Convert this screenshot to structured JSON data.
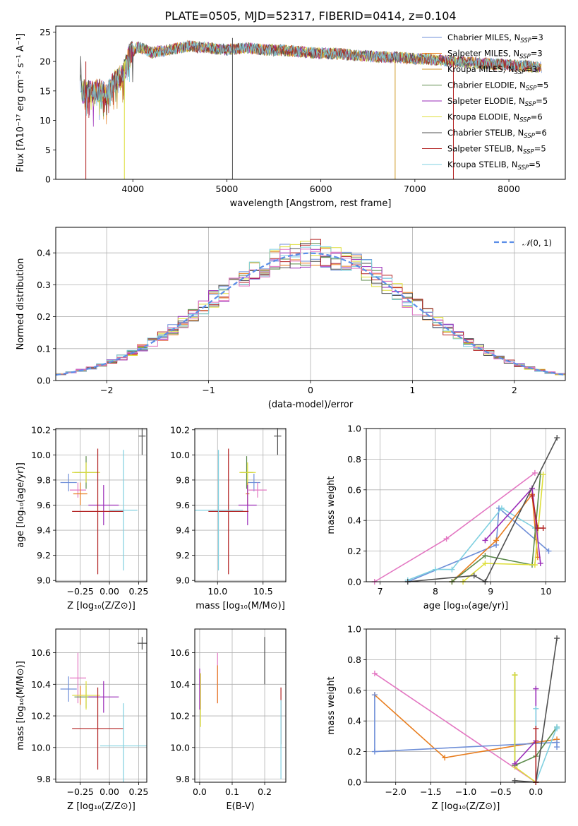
{
  "figure": {
    "title": "PLATE=0505, MJD=52317, FIBERID=0414, z=0.104"
  },
  "colors": {
    "Chabrier MILES": "#6f8fd8",
    "Salpeter MILES": "#e87d1e",
    "Kroupa MILES": "#d09a2a",
    "Chabrier ELODIE": "#5b8a4a",
    "Salpeter ELODIE": "#9a2bb8",
    "Kroupa ELODIE": "#dede3a",
    "Chabrier STELIB": "#505050",
    "Salpeter STELIB": "#b22222",
    "Kroupa STELIB": "#7fd0e0",
    "pink": "#e377c2",
    "gaussian": "#5b8ee8"
  },
  "chart_data": [
    {
      "id": "spectrum",
      "type": "line",
      "xlabel": "wavelength [Angstrom, rest frame]",
      "ylabel": "Flux [fλ10⁻¹⁷ erg cm⁻² s⁻¹ A⁻¹]",
      "xlim": [
        3180,
        8600
      ],
      "ylim": [
        0,
        26
      ],
      "xticks": [
        4000,
        5000,
        6000,
        7000,
        8000
      ],
      "yticks": [
        0,
        5,
        10,
        15,
        20,
        25
      ],
      "spikes": [
        3500,
        3910,
        5060,
        6790,
        7410
      ],
      "series": [
        {
          "name": "Chabrier MILES, N_SSP=3",
          "label": "Chabrier MILES, N",
          "sub": "SSP",
          "n": "=3",
          "color": "#6f8fd8"
        },
        {
          "name": "Salpeter MILES, N_SSP=3",
          "label": "Salpeter MILES, N",
          "sub": "SSP",
          "n": "=3",
          "color": "#e87d1e"
        },
        {
          "name": "Kroupa MILES, N_SSP=3",
          "label": "Kroupa MILES, N",
          "sub": "SSP",
          "n": "=3",
          "color": "#d09a2a"
        },
        {
          "name": "Chabrier ELODIE, N_SSP=5",
          "label": "Chabrier ELODIE, N",
          "sub": "SSP",
          "n": "=5",
          "color": "#5b8a4a"
        },
        {
          "name": "Salpeter ELODIE, N_SSP=5",
          "label": "Salpeter ELODIE, N",
          "sub": "SSP",
          "n": "=5",
          "color": "#9a2bb8"
        },
        {
          "name": "Kroupa ELODIE, N_SSP=6",
          "label": "Kroupa ELODIE, N",
          "sub": "SSP",
          "n": "=6",
          "color": "#dede3a"
        },
        {
          "name": "Chabrier STELIB, N_SSP=6",
          "label": "Chabrier STELIB, N",
          "sub": "SSP",
          "n": "=6",
          "color": "#505050"
        },
        {
          "name": "Salpeter STELIB, N_SSP=5",
          "label": "Salpeter STELIB, N",
          "sub": "SSP",
          "n": "=5",
          "color": "#b22222"
        },
        {
          "name": "Kroupa STELIB, N_SSP=5",
          "label": "Kroupa STELIB, N",
          "sub": "SSP",
          "n": "=5",
          "color": "#7fd0e0"
        }
      ],
      "continuum": [
        [
          3450,
          15.3
        ],
        [
          3550,
          14.8
        ],
        [
          3650,
          15.2
        ],
        [
          3720,
          14.2
        ],
        [
          3800,
          16.5
        ],
        [
          3900,
          18.0
        ],
        [
          3960,
          21.0
        ],
        [
          4050,
          22.5
        ],
        [
          4200,
          21.5
        ],
        [
          4400,
          22.0
        ],
        [
          4600,
          22.6
        ],
        [
          4850,
          22.2
        ],
        [
          5000,
          22.0
        ],
        [
          5200,
          22.3
        ],
        [
          5400,
          22.0
        ],
        [
          5600,
          21.9
        ],
        [
          5800,
          21.6
        ],
        [
          6000,
          21.4
        ],
        [
          6200,
          21.3
        ],
        [
          6400,
          21.0
        ],
        [
          6600,
          20.8
        ],
        [
          6800,
          20.7
        ],
        [
          7000,
          20.5
        ],
        [
          7200,
          20.3
        ],
        [
          7400,
          20.0
        ],
        [
          7600,
          19.8
        ],
        [
          7800,
          19.6
        ],
        [
          8000,
          19.4
        ],
        [
          8200,
          19.2
        ],
        [
          8350,
          19.0
        ]
      ]
    },
    {
      "id": "histogram",
      "type": "histogram",
      "xlabel": "(data-model)/error",
      "ylabel": "Normed distribution",
      "xlim": [
        -2.5,
        2.5
      ],
      "ylim": [
        0,
        0.48
      ],
      "xticks": [
        -2,
        -1,
        0,
        1,
        2
      ],
      "yticks": [
        0.0,
        0.1,
        0.2,
        0.3,
        0.4
      ],
      "bin_width": 0.1,
      "legend": "N(0,1)"
    },
    {
      "id": "age_vs_Z",
      "type": "scatter",
      "xlabel": "Z [log₁₀(Z/Z⊙)]",
      "ylabel": "age  [log₁₀(age/yr)]",
      "xlim": [
        -0.46,
        0.32
      ],
      "ylim": [
        8.99,
        10.21
      ],
      "xticks": [
        -0.25,
        0.0,
        0.25
      ],
      "xtick_labels": [
        "−0.25",
        "0.00",
        "0.25"
      ],
      "yticks": [
        9.0,
        9.2,
        9.4,
        9.6,
        9.8,
        10.0,
        10.2
      ],
      "points": [
        {
          "x": -0.35,
          "y": 9.78,
          "xe": 0.07,
          "ye": 0.07,
          "color": "#6f8fd8"
        },
        {
          "x": -0.27,
          "y": 9.72,
          "xe": 0.07,
          "ye": 0.06,
          "color": "#e377c2"
        },
        {
          "x": -0.25,
          "y": 9.69,
          "xe": 0.06,
          "ye": 0.09,
          "color": "#e87d1e"
        },
        {
          "x": -0.2,
          "y": 9.86,
          "xe": 0.1,
          "ye": 0.13,
          "color": "#5b8a4a"
        },
        {
          "x": -0.2,
          "y": 9.86,
          "xe": 0.12,
          "ye": 0.08,
          "color": "#dede3a"
        },
        {
          "x": -0.05,
          "y": 9.6,
          "xe": 0.13,
          "ye": 0.16,
          "color": "#9a2bb8"
        },
        {
          "x": -0.1,
          "y": 9.55,
          "xe": 0.22,
          "ye": 0.5,
          "color": "#b22222"
        },
        {
          "x": 0.12,
          "y": 9.56,
          "xe": 0.12,
          "ye": 0.48,
          "color": "#7fd0e0"
        },
        {
          "x": 0.28,
          "y": 10.15,
          "xe": 0.03,
          "ye": 0.15,
          "color": "#505050"
        }
      ]
    },
    {
      "id": "age_vs_mass",
      "type": "scatter",
      "xlabel": "mass [log₁₀(M/M⊙)]",
      "ylabel": "",
      "xlim": [
        9.75,
        10.75
      ],
      "ylim": [
        8.99,
        10.21
      ],
      "xticks": [
        10.0,
        10.5
      ],
      "xtick_labels": [
        "10.0",
        "10.5"
      ],
      "yticks": [
        9.0,
        9.2,
        9.4,
        9.6,
        9.8,
        10.0,
        10.2
      ],
      "points": [
        {
          "x": 10.4,
          "y": 9.78,
          "xe": 0.07,
          "ye": 0.07,
          "color": "#6f8fd8"
        },
        {
          "x": 10.44,
          "y": 9.72,
          "xe": 0.1,
          "ye": 0.06,
          "color": "#e377c2"
        },
        {
          "x": 10.33,
          "y": 9.69,
          "xe": 0.02,
          "ye": 0.09,
          "color": "#e87d1e"
        },
        {
          "x": 10.32,
          "y": 9.86,
          "xe": 0.07,
          "ye": 0.13,
          "color": "#5b8a4a"
        },
        {
          "x": 10.33,
          "y": 9.86,
          "xe": 0.09,
          "ye": 0.08,
          "color": "#dede3a"
        },
        {
          "x": 10.33,
          "y": 9.6,
          "xe": 0.1,
          "ye": 0.16,
          "color": "#9a2bb8"
        },
        {
          "x": 10.12,
          "y": 9.55,
          "xe": 0.22,
          "ye": 0.5,
          "color": "#b22222"
        },
        {
          "x": 10.01,
          "y": 9.56,
          "xe": 0.27,
          "ye": 0.48,
          "color": "#7fd0e0"
        },
        {
          "x": 10.66,
          "y": 10.15,
          "xe": 0.04,
          "ye": 0.15,
          "color": "#505050"
        }
      ]
    },
    {
      "id": "weight_vs_age",
      "type": "line",
      "xlabel": "age  [log₁₀(age/yr)]",
      "ylabel": "mass weight",
      "xlim": [
        6.75,
        10.35
      ],
      "ylim": [
        0.0,
        1.0
      ],
      "xticks": [
        7,
        8,
        9,
        10
      ],
      "xtick_labels": [
        "7",
        "8",
        "9",
        "10"
      ],
      "yticks": [
        0.0,
        0.2,
        0.4,
        0.6,
        0.8,
        1.0
      ],
      "series": [
        {
          "color": "#e377c2",
          "x": [
            6.9,
            8.2,
            9.8
          ],
          "y": [
            0.0,
            0.28,
            0.71
          ]
        },
        {
          "color": "#6f8fd8",
          "x": [
            7.5,
            9.1,
            9.15,
            10.05
          ],
          "y": [
            0.0,
            0.24,
            0.48,
            0.2
          ]
        },
        {
          "color": "#7fd0e0",
          "x": [
            7.5,
            8.0,
            8.3,
            9.2,
            9.8
          ],
          "y": [
            0.01,
            0.08,
            0.08,
            0.48,
            0.35
          ]
        },
        {
          "color": "#e87d1e",
          "x": [
            8.3,
            9.1,
            9.75,
            9.85
          ],
          "y": [
            0.0,
            0.27,
            0.57,
            0.16
          ]
        },
        {
          "color": "#5b8a4a",
          "x": [
            8.3,
            8.9,
            9.75,
            9.9
          ],
          "y": [
            0.0,
            0.17,
            0.11,
            0.7
          ]
        },
        {
          "color": "#dede3a",
          "x": [
            8.5,
            8.9,
            9.8,
            9.95
          ],
          "y": [
            0.0,
            0.12,
            0.11,
            0.7
          ]
        },
        {
          "color": "#9a2bb8",
          "x": [
            8.9,
            9.75,
            9.9
          ],
          "y": [
            0.27,
            0.61,
            0.12
          ]
        },
        {
          "color": "#505050",
          "x": [
            7.5,
            8.7,
            8.9,
            10.2
          ],
          "y": [
            0.0,
            0.04,
            0.0,
            0.94
          ]
        },
        {
          "color": "#b22222",
          "x": [
            9.75,
            9.85,
            9.95
          ],
          "y": [
            0.56,
            0.35,
            0.35
          ]
        }
      ]
    },
    {
      "id": "mass_vs_Z",
      "type": "scatter",
      "xlabel": "Z [log₁₀(Z/Z⊙)]",
      "ylabel": "mass [log₁₀(M/M⊙)]",
      "xlim": [
        -0.46,
        0.32
      ],
      "ylim": [
        9.78,
        10.75
      ],
      "xticks": [
        -0.25,
        0.0,
        0.25
      ],
      "xtick_labels": [
        "−0.25",
        "0.00",
        "0.25"
      ],
      "yticks": [
        9.8,
        10.0,
        10.2,
        10.4,
        10.6
      ],
      "points": [
        {
          "x": -0.35,
          "y": 10.37,
          "xe": 0.07,
          "ye": 0.08,
          "color": "#6f8fd8"
        },
        {
          "x": -0.27,
          "y": 10.44,
          "xe": 0.07,
          "ye": 0.16,
          "color": "#e377c2"
        },
        {
          "x": -0.25,
          "y": 10.33,
          "xe": 0.06,
          "ye": 0.06,
          "color": "#e87d1e"
        },
        {
          "x": -0.2,
          "y": 10.32,
          "xe": 0.1,
          "ye": 0.07,
          "color": "#5b8a4a"
        },
        {
          "x": -0.2,
          "y": 10.33,
          "xe": 0.12,
          "ye": 0.09,
          "color": "#dede3a"
        },
        {
          "x": -0.05,
          "y": 10.32,
          "xe": 0.13,
          "ye": 0.1,
          "color": "#9a2bb8"
        },
        {
          "x": -0.1,
          "y": 10.12,
          "xe": 0.22,
          "ye": 0.26,
          "color": "#b22222"
        },
        {
          "x": 0.12,
          "y": 10.01,
          "xe": 0.2,
          "ye": 0.27,
          "color": "#7fd0e0"
        },
        {
          "x": 0.28,
          "y": 10.66,
          "xe": 0.04,
          "ye": 0.04,
          "color": "#505050"
        }
      ]
    },
    {
      "id": "mass_vs_EBV",
      "type": "scatter",
      "xlabel": "E(B-V)",
      "ylabel": "",
      "xlim": [
        -0.015,
        0.265
      ],
      "ylim": [
        9.78,
        10.75
      ],
      "xticks": [
        0.0,
        0.1,
        0.2
      ],
      "xtick_labels": [
        "0.0",
        "0.1",
        "0.2"
      ],
      "yticks": [
        9.8,
        10.0,
        10.2,
        10.4,
        10.6
      ],
      "points": [
        {
          "x": 0.0,
          "y": 10.37,
          "xe": 0,
          "ye": 0.13,
          "color": "#9a2bb8"
        },
        {
          "x": 0.003,
          "y": 10.3,
          "xe": 0,
          "ye": 0.17,
          "color": "#dede3a"
        },
        {
          "x": 0.055,
          "y": 10.44,
          "xe": 0,
          "ye": 0.16,
          "color": "#e377c2"
        },
        {
          "x": 0.055,
          "y": 10.4,
          "xe": 0,
          "ye": 0.12,
          "color": "#e87d1e"
        },
        {
          "x": 0.2,
          "y": 10.55,
          "xe": 0,
          "ye": 0.15,
          "color": "#505050"
        },
        {
          "x": 0.25,
          "y": 10.2,
          "xe": 0,
          "ye": 0.18,
          "color": "#b22222"
        },
        {
          "x": 0.25,
          "y": 10.05,
          "xe": 0,
          "ye": 0.25,
          "color": "#7fd0e0"
        }
      ]
    },
    {
      "id": "weight_vs_Z",
      "type": "line",
      "xlabel": "Z [log₁₀(Z/Z⊙)]",
      "ylabel": "mass weight",
      "xlim": [
        -2.42,
        0.42
      ],
      "ylim": [
        0.0,
        1.0
      ],
      "xticks": [
        -2.0,
        -1.5,
        -1.0,
        -0.5,
        0.0
      ],
      "xtick_labels": [
        "−2.0",
        "−1.5",
        "−1.0",
        "−0.5",
        "0.0"
      ],
      "yticks": [
        0.0,
        0.2,
        0.4,
        0.6,
        0.8,
        1.0
      ],
      "series": [
        {
          "color": "#e377c2",
          "x": [
            -2.3,
            0.0
          ],
          "y": [
            0.71,
            0.0
          ]
        },
        {
          "color": "#e87d1e",
          "x": [
            -2.3,
            -1.3,
            0.0,
            0.3
          ],
          "y": [
            0.57,
            0.16,
            0.26,
            0.28
          ]
        },
        {
          "color": "#6f8fd8",
          "x": [
            -2.3,
            -2.3,
            0.3,
            0.3
          ],
          "y": [
            0.57,
            0.2,
            0.26,
            0.23
          ]
        },
        {
          "color": "#5b8a4a",
          "x": [
            -0.3,
            -0.3,
            0.0,
            0.3
          ],
          "y": [
            0.7,
            0.11,
            0.17,
            0.36
          ]
        },
        {
          "color": "#dede3a",
          "x": [
            -0.3,
            -0.3,
            0.0
          ],
          "y": [
            0.7,
            0.1,
            0.0
          ]
        },
        {
          "color": "#9a2bb8",
          "x": [
            0.0,
            0.0,
            -0.3
          ],
          "y": [
            0.61,
            0.27,
            0.12
          ]
        },
        {
          "color": "#7fd0e0",
          "x": [
            0.0,
            0.0,
            0.3,
            0.3
          ],
          "y": [
            0.48,
            0.0,
            0.36,
            0.35
          ]
        },
        {
          "color": "#505050",
          "x": [
            -0.3,
            0.0,
            0.3
          ],
          "y": [
            0.01,
            0.0,
            0.94
          ]
        },
        {
          "color": "#b22222",
          "x": [
            0.0,
            0.0
          ],
          "y": [
            0.35,
            0.0
          ]
        }
      ]
    }
  ]
}
